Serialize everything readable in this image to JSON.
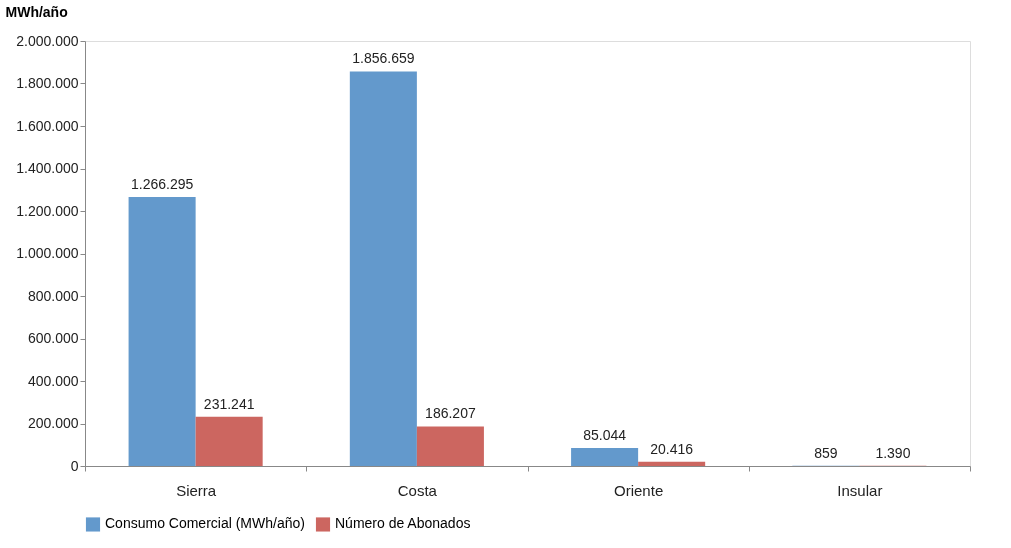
{
  "chart_data": {
    "type": "bar",
    "ylabel": "MWh/año",
    "categories": [
      "Sierra",
      "Costa",
      "Oriente",
      "Insular"
    ],
    "series": [
      {
        "name": "Consumo Comercial (MWh/año)",
        "color": "#6399cc",
        "values": [
          1266295,
          1856659,
          85044,
          859
        ],
        "value_labels": [
          "1.266.295",
          "1.856.659",
          "85.044",
          "859"
        ]
      },
      {
        "name": "Número de Abonados",
        "color": "#cc6660",
        "values": [
          231241,
          186207,
          20416,
          1390
        ],
        "value_labels": [
          "231.241",
          "186.207",
          "20.416",
          "1.390"
        ]
      }
    ],
    "ylim": [
      0,
      2000000
    ],
    "yticks": [
      {
        "value": 0,
        "label": "0"
      },
      {
        "value": 200000,
        "label": "200.000"
      },
      {
        "value": 400000,
        "label": "400.000"
      },
      {
        "value": 600000,
        "label": "600.000"
      },
      {
        "value": 800000,
        "label": "800.000"
      },
      {
        "value": 1000000,
        "label": "1.000.000"
      },
      {
        "value": 1200000,
        "label": "1.200.000"
      },
      {
        "value": 1400000,
        "label": "1.400.000"
      },
      {
        "value": 1600000,
        "label": "1.600.000"
      },
      {
        "value": 1800000,
        "label": "1.800.000"
      },
      {
        "value": 2000000,
        "label": "2.000.000"
      }
    ],
    "grid": false,
    "legend": "bottom"
  }
}
